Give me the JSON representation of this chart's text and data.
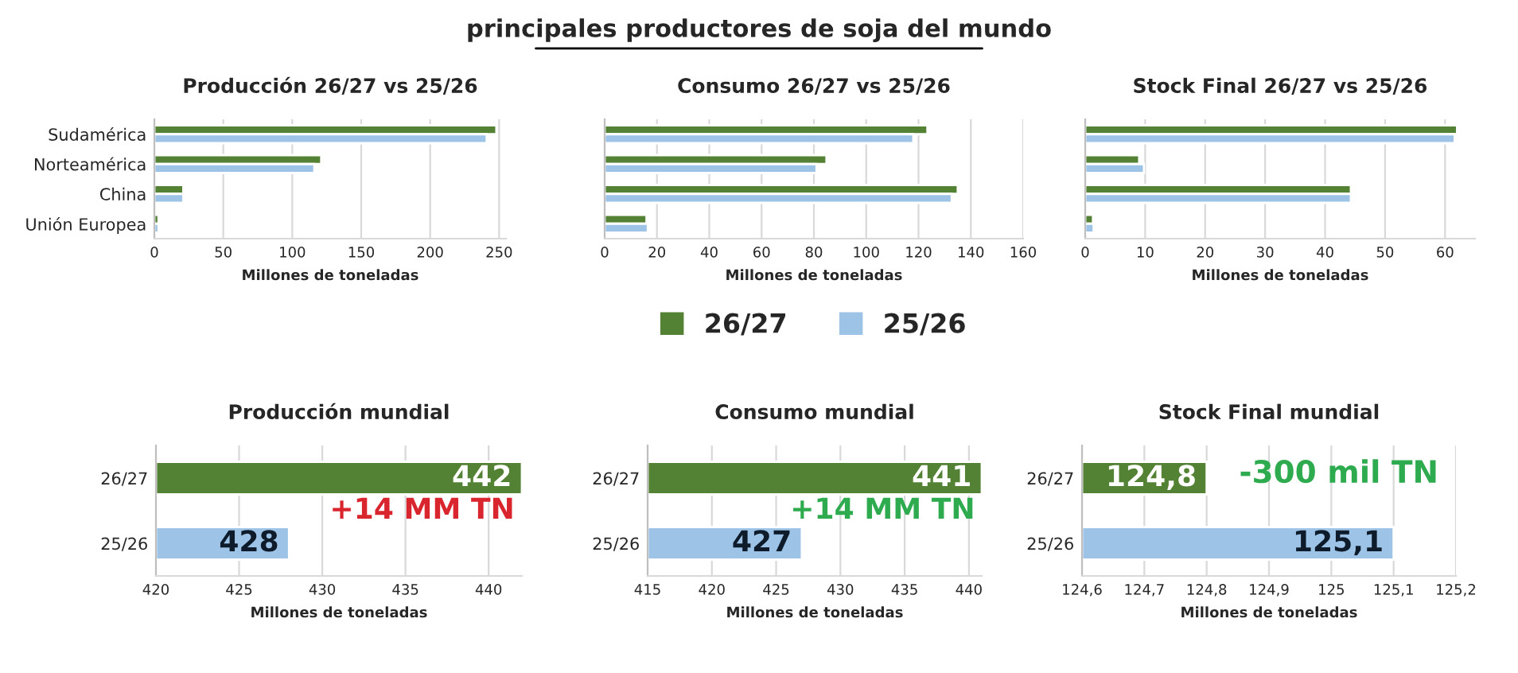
{
  "chart_data": [
    {
      "type": "bar",
      "orientation": "horizontal",
      "title": "Producción 26/27 vs 25/26",
      "xlabel": "Millones de toneladas",
      "annotations": [
        "principales productores de soja del mundo"
      ],
      "categories": [
        "Sudamérica",
        "Norteamérica",
        "China",
        "Unión Europea"
      ],
      "series": [
        {
          "color": "#548235",
          "values": [
            248,
            121,
            21,
            3
          ]
        },
        {
          "color": "#9dc3e6",
          "values": [
            241,
            116,
            21,
            3
          ]
        }
      ],
      "xlim": [
        0,
        255
      ],
      "xticks": [
        0,
        50,
        100,
        150,
        200,
        250
      ],
      "grid": "x",
      "legend": false
    },
    {
      "type": "bar",
      "orientation": "horizontal",
      "title": "Consumo 26/27 vs 25/26",
      "xlabel": "Millones de toneladas",
      "categories": [
        null,
        null,
        null,
        null
      ],
      "series": [
        {
          "name": "26/27",
          "color": "#548235",
          "values": [
            123.4,
            84.8,
            135,
            16
          ]
        },
        {
          "name": "25/26",
          "color": "#9dc3e6",
          "values": [
            118,
            81,
            132.7,
            16.5
          ]
        }
      ],
      "xlim": [
        0,
        160
      ],
      "xticks": [
        0,
        20,
        40,
        60,
        80,
        100,
        120,
        140,
        160
      ],
      "grid": "x",
      "legend": "bottom"
    },
    {
      "type": "bar",
      "orientation": "horizontal",
      "title": "Stock Final 26/27 vs 25/26",
      "xlabel": "Millones de toneladas",
      "categories": [
        null,
        null,
        null,
        null
      ],
      "series": [
        {
          "color": "#548235",
          "values": [
            62,
            9,
            44.3,
            1.3
          ]
        },
        {
          "color": "#9dc3e6",
          "values": [
            61.6,
            9.8,
            44.3,
            1.4
          ]
        }
      ],
      "xlim": [
        0,
        65
      ],
      "xticks": [
        0,
        10,
        20,
        30,
        40,
        50,
        60
      ],
      "grid": "x",
      "legend": false
    },
    {
      "type": "bar",
      "orientation": "horizontal",
      "title": "Producción mundial",
      "xlabel": "Millones de toneladas",
      "annotations": [
        "+14 MM TN"
      ],
      "categories": [
        "26/27",
        "25/26"
      ],
      "values": [
        442,
        428
      ],
      "colors": [
        "#548235",
        "#9dc3e6"
      ],
      "data_labels": true,
      "xlim": [
        420,
        442
      ],
      "xticks": [
        420,
        425,
        430,
        435,
        440
      ],
      "grid": "x"
    },
    {
      "type": "bar",
      "orientation": "horizontal",
      "title": "Consumo mundial",
      "xlabel": "Millones de toneladas",
      "annotations": [
        "+14 MM TN"
      ],
      "categories": [
        "26/27",
        "25/26"
      ],
      "values": [
        441,
        427
      ],
      "colors": [
        "#548235",
        "#9dc3e6"
      ],
      "data_labels": true,
      "xlim": [
        415,
        441
      ],
      "xticks": [
        415,
        420,
        425,
        430,
        435,
        440
      ],
      "grid": "x"
    },
    {
      "type": "bar",
      "orientation": "horizontal",
      "title": "Stock Final mundial",
      "xlabel": "Millones de toneladas",
      "annotations": [
        "-300 mil TN"
      ],
      "categories": [
        "26/27",
        "25/26"
      ],
      "values": [
        124.8,
        125.1
      ],
      "value_labels": [
        "124,8",
        "125,1"
      ],
      "colors": [
        "#548235",
        "#9dc3e6"
      ],
      "xlim": [
        124.6,
        125.2
      ],
      "xticks": [
        {
          "value": 124.6,
          "label": "124,6"
        },
        {
          "value": 124.7,
          "label": "124,7"
        },
        {
          "value": 124.8,
          "label": "124,8"
        },
        {
          "value": 124.9,
          "label": "124,9"
        },
        {
          "value": 125,
          "label": "125"
        },
        {
          "value": 125.1,
          "label": "125,1"
        },
        {
          "value": 125.2,
          "label": "125,2"
        }
      ],
      "grid": "x"
    }
  ]
}
